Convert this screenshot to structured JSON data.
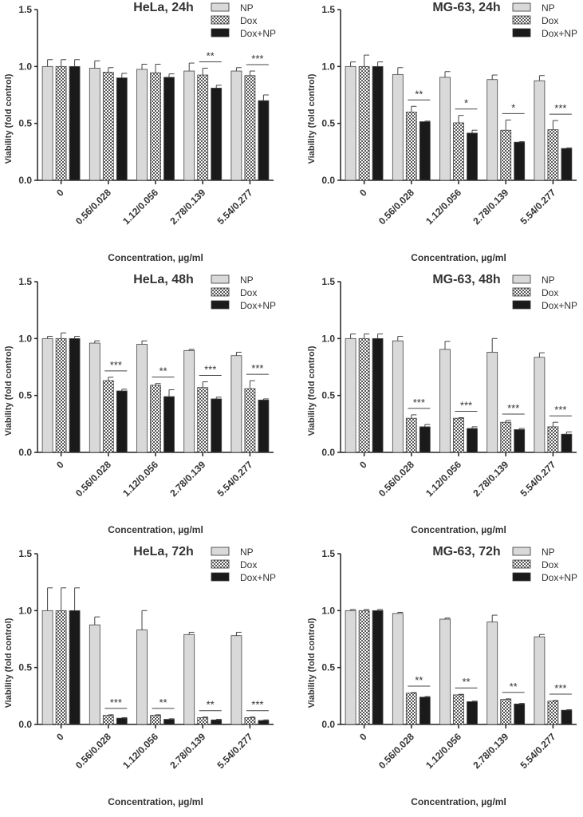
{
  "chart_data": [
    {
      "type": "bar",
      "title": "HeLa, 24h",
      "xlabel": "Concentration, µg/ml",
      "ylabel": "Viability (fold control)",
      "ylim": [
        0,
        1.5
      ],
      "yticks": [
        "0.0",
        "0.5",
        "1.0",
        "1.5"
      ],
      "categories": [
        "0",
        "0.56/0.028",
        "1.12/0.056",
        "2.78/0.139",
        "5.54/0.277"
      ],
      "series": [
        {
          "name": "NP",
          "values": [
            1.0,
            0.985,
            0.975,
            0.96,
            0.96
          ],
          "errors": [
            0.06,
            0.065,
            0.045,
            0.07,
            0.03
          ]
        },
        {
          "name": "Dox",
          "values": [
            1.0,
            0.95,
            0.945,
            0.925,
            0.92
          ],
          "errors": [
            0.06,
            0.04,
            0.075,
            0.06,
            0.04
          ]
        },
        {
          "name": "Dox+NP",
          "values": [
            1.0,
            0.9,
            0.905,
            0.81,
            0.7
          ],
          "errors": [
            0.06,
            0.04,
            0.03,
            0.025,
            0.05
          ]
        }
      ],
      "significance": [
        "",
        "",
        "",
        "**",
        "***"
      ]
    },
    {
      "type": "bar",
      "title": "MG-63, 24h",
      "xlabel": "Concentration, µg/ml",
      "ylabel": "Viability (fold control)",
      "ylim": [
        0,
        1.5
      ],
      "yticks": [
        "0.0",
        "0.5",
        "1.0",
        "1.5"
      ],
      "categories": [
        "0",
        "0.56/0.028",
        "1.12/0.056",
        "2.78/0.139",
        "5.54/0.277"
      ],
      "series": [
        {
          "name": "NP",
          "values": [
            1.0,
            0.93,
            0.905,
            0.885,
            0.875
          ],
          "errors": [
            0.04,
            0.06,
            0.05,
            0.04,
            0.045
          ]
        },
        {
          "name": "Dox",
          "values": [
            1.0,
            0.6,
            0.505,
            0.44,
            0.445
          ],
          "errors": [
            0.1,
            0.05,
            0.065,
            0.09,
            0.08
          ]
        },
        {
          "name": "Dox+NP",
          "values": [
            1.0,
            0.515,
            0.415,
            0.335,
            0.28
          ],
          "errors": [
            0.04,
            0.005,
            0.025,
            0.005,
            0.005
          ]
        }
      ],
      "significance": [
        "",
        "**",
        "*",
        "*",
        "***"
      ]
    },
    {
      "type": "bar",
      "title": "HeLa, 48h",
      "xlabel": "Concentration, µg/ml",
      "ylabel": "Viability (fold control)",
      "ylim": [
        0,
        1.5
      ],
      "yticks": [
        "0.0",
        "0.5",
        "1.0",
        "1.5"
      ],
      "categories": [
        "0",
        "0.56/0.028",
        "1.12/0.056",
        "2.78/0.139",
        "5.54/0.277"
      ],
      "series": [
        {
          "name": "NP",
          "values": [
            1.0,
            0.96,
            0.95,
            0.895,
            0.85
          ],
          "errors": [
            0.02,
            0.02,
            0.03,
            0.01,
            0.03
          ]
        },
        {
          "name": "Dox",
          "values": [
            1.0,
            0.63,
            0.59,
            0.57,
            0.56
          ],
          "errors": [
            0.05,
            0.03,
            0.015,
            0.05,
            0.07
          ]
        },
        {
          "name": "Dox+NP",
          "values": [
            1.0,
            0.54,
            0.49,
            0.47,
            0.46
          ],
          "errors": [
            0.02,
            0.015,
            0.06,
            0.015,
            0.01
          ]
        }
      ],
      "significance": [
        "",
        "***",
        "**",
        "***",
        "***"
      ]
    },
    {
      "type": "bar",
      "title": "MG-63, 48h",
      "xlabel": "Concentration, µg/ml",
      "ylabel": "Viability (fold control)",
      "ylim": [
        0,
        1.5
      ],
      "yticks": [
        "0.0",
        "0.5",
        "1.0",
        "1.5"
      ],
      "categories": [
        "0",
        "0.56/0.028",
        "1.12/0.056",
        "2.78/0.139",
        "5.54/0.277"
      ],
      "series": [
        {
          "name": "NP",
          "values": [
            1.0,
            0.98,
            0.905,
            0.88,
            0.835
          ],
          "errors": [
            0.04,
            0.04,
            0.07,
            0.12,
            0.04
          ]
        },
        {
          "name": "Dox",
          "values": [
            1.0,
            0.3,
            0.3,
            0.265,
            0.225
          ],
          "errors": [
            0.04,
            0.03,
            0.005,
            0.015,
            0.04
          ]
        },
        {
          "name": "Dox+NP",
          "values": [
            1.0,
            0.225,
            0.21,
            0.2,
            0.16
          ],
          "errors": [
            0.04,
            0.02,
            0.015,
            0.01,
            0.02
          ]
        }
      ],
      "significance": [
        "",
        "***",
        "***",
        "***",
        "***"
      ]
    },
    {
      "type": "bar",
      "title": "HeLa, 72h",
      "xlabel": "Concentration, µg/ml",
      "ylabel": "Viability (fold control)",
      "ylim": [
        0,
        1.5
      ],
      "yticks": [
        "0.0",
        "0.5",
        "1.0",
        "1.5"
      ],
      "categories": [
        "0",
        "0.56/0.028",
        "1.12/0.056",
        "2.78/0.139",
        "5.54/0.277"
      ],
      "series": [
        {
          "name": "NP",
          "values": [
            1.0,
            0.875,
            0.83,
            0.79,
            0.78
          ],
          "errors": [
            0.2,
            0.07,
            0.17,
            0.02,
            0.03
          ]
        },
        {
          "name": "Dox",
          "values": [
            1.0,
            0.08,
            0.08,
            0.06,
            0.06
          ],
          "errors": [
            0.2,
            0.005,
            0.005,
            0.005,
            0.005
          ]
        },
        {
          "name": "Dox+NP",
          "values": [
            1.0,
            0.055,
            0.045,
            0.04,
            0.035
          ],
          "errors": [
            0.2,
            0.005,
            0.005,
            0.005,
            0.005
          ]
        }
      ],
      "significance": [
        "",
        "***",
        "**",
        "**",
        "***"
      ]
    },
    {
      "type": "bar",
      "title": "MG-63, 72h",
      "xlabel": "Concentration, µg/ml",
      "ylabel": "Viability (fold control)",
      "ylim": [
        0,
        1.5
      ],
      "yticks": [
        "0.0",
        "0.5",
        "1.0",
        "1.5"
      ],
      "categories": [
        "0",
        "0.56/0.028",
        "1.12/0.056",
        "2.78/0.139",
        "5.54/0.277"
      ],
      "series": [
        {
          "name": "NP",
          "values": [
            1.0,
            0.975,
            0.925,
            0.9,
            0.77
          ],
          "errors": [
            0.01,
            0.01,
            0.01,
            0.06,
            0.02
          ]
        },
        {
          "name": "Dox",
          "values": [
            1.0,
            0.275,
            0.26,
            0.22,
            0.205
          ],
          "errors": [
            0.01,
            0.005,
            0.005,
            0.005,
            0.005
          ]
        },
        {
          "name": "Dox+NP",
          "values": [
            1.0,
            0.24,
            0.2,
            0.18,
            0.125
          ],
          "errors": [
            0.01,
            0.005,
            0.005,
            0.005,
            0.005
          ]
        }
      ],
      "significance": [
        "",
        "**",
        "**",
        "**",
        "***"
      ]
    }
  ],
  "colors": {
    "NP": "#d9d9d9",
    "Dox": "#9a9a9a",
    "Dox+NP": "#1a1a1a",
    "axis": "#222222"
  }
}
